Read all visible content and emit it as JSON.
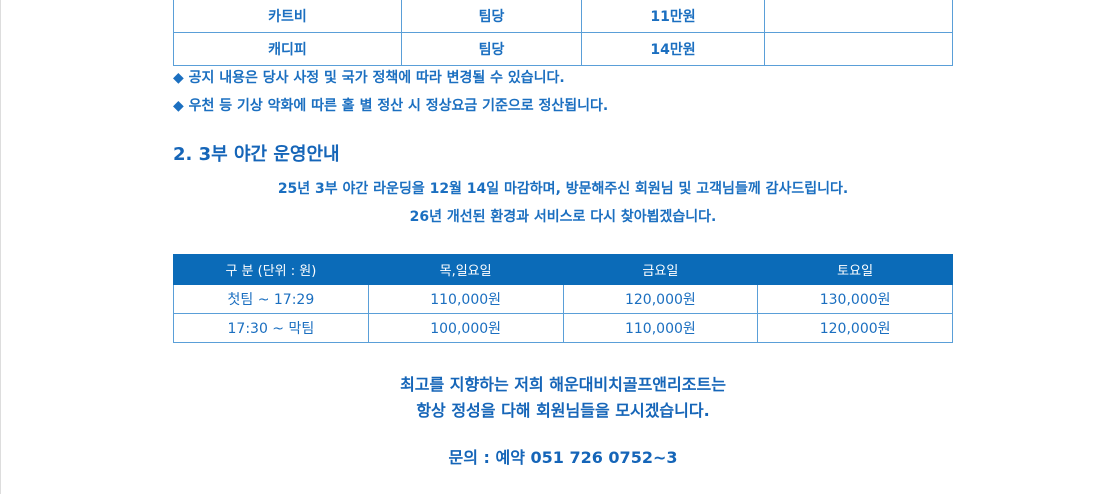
{
  "fee_table": {
    "rows": [
      {
        "item": "카트비",
        "unit": "팀당",
        "price": "11만원",
        "note": ""
      },
      {
        "item": "캐디피",
        "unit": "팀당",
        "price": "14만원",
        "note": ""
      }
    ]
  },
  "notes": [
    "◆ 공지 내용은 당사 사정 및 국가 정책에 따라 변경될 수 있습니다.",
    "◆ 우천 등 기상 악화에 따른 홀 별 정산 시 정상요금 기준으로 정산됩니다."
  ],
  "section2": {
    "title": "2. 3부 야간 운영안내",
    "lines": [
      "25년 3부 야간 라운딩을 12월 14일 마감하며, 방문해주신 회원님 및 고객님들께 감사드립니다.",
      "26년 개선된 환경과 서비스로 다시 찾아뵙겠습니다."
    ],
    "table": {
      "headers": [
        "구 분 (단위 : 원)",
        "목,일요일",
        "금요일",
        "토요일"
      ],
      "rows": [
        [
          "첫팀 ~ 17:29",
          "110,000원",
          "120,000원",
          "130,000원"
        ],
        [
          "17:30 ~ 막팀",
          "100,000원",
          "110,000원",
          "120,000원"
        ]
      ]
    }
  },
  "footer": {
    "line1": "최고를 지향하는 저희 해운대비치골프앤리조트는",
    "line2": "항상 정성을 다해 회원님들을 모시겠습니다.",
    "contact": "문의 : 예약 051 726 0752~3"
  },
  "colors": {
    "text": "#1b6fc0",
    "header_bg": "#0b6bb8"
  }
}
